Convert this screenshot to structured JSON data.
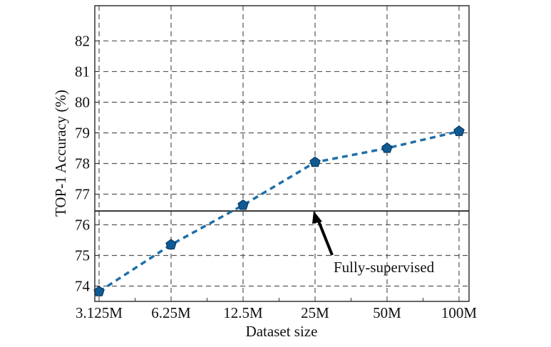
{
  "chart_data": {
    "type": "line",
    "title": "",
    "xlabel": "Dataset size",
    "ylabel": "TOP-1 Accuracy (%)",
    "categories": [
      "3.125M",
      "6.25M",
      "12.5M",
      "25M",
      "50M",
      "100M"
    ],
    "series": [
      {
        "values": [
          73.82,
          75.35,
          76.64,
          78.04,
          78.5,
          79.05
        ],
        "color": "#1f6fa8",
        "marker": "pentagon",
        "line_style": "dashed"
      }
    ],
    "reference_line": {
      "label": "Fully-supervised",
      "value": 76.45,
      "color": "#333333"
    },
    "yticks": [
      74,
      75,
      76,
      77,
      78,
      79,
      80,
      81,
      82
    ],
    "ylim": [
      73.5,
      83.15
    ],
    "grid": true
  }
}
